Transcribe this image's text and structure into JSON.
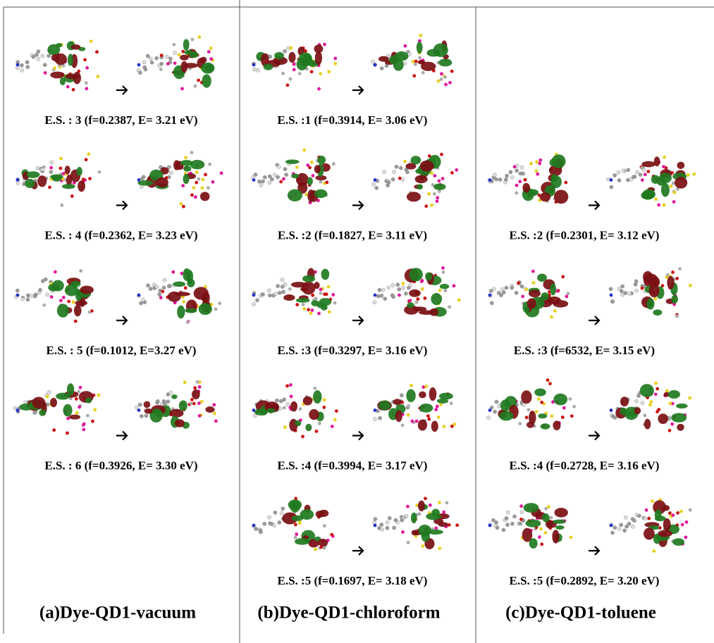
{
  "columns": [
    {
      "label": "(a)Dye-QD1-vacuum",
      "states": [
        "E.S. : 3 (f=0.2387, E= 3.21 eV)",
        "E.S. : 4 (f=0.2362, E= 3.23 eV)",
        "E.S. : 5 (f=0.1012, E=3.27 eV)",
        "E.S. : 6 (f=0.3926, E= 3.30 eV)",
        null
      ]
    },
    {
      "label": "(b)Dye-QD1-chloroform",
      "states": [
        "E.S. :1 (f=0.3914, E= 3.06 eV)",
        "E.S. :2 (f=0.1827, E= 3.11 eV)",
        "E.S. :3 (f=0.3297, E= 3.16 eV)",
        "E.S. :4 (f=0.3994, E= 3.17 eV)",
        "E.S. :5 (f=0.1697, E= 3.18 eV)"
      ]
    },
    {
      "label": "(c)Dye-QD1-toluene",
      "states": [
        null,
        "E.S. :2 (f=0.2301, E= 3.12 eV)",
        "E.S. :3 (f=6532, E= 3.15 eV)",
        "E.S. :4 (f=0.2728, E= 3.16 eV)",
        "E.S. :5 (f=0.2892, E= 3.20 eV)"
      ]
    }
  ]
}
